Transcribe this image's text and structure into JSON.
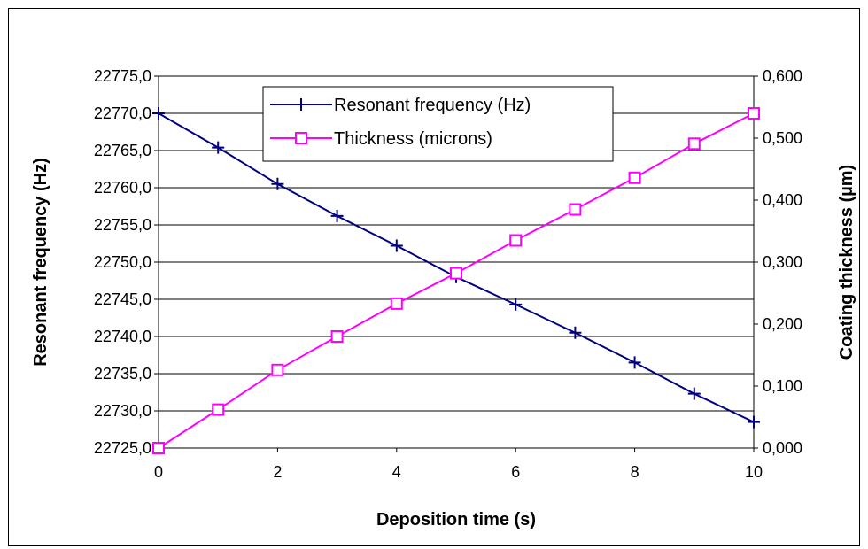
{
  "chart_data": {
    "type": "line",
    "xlabel": "Deposition time (s)",
    "ylabel_left": "Resonant frequency (Hz)",
    "ylabel_right": "Coating thickness (µm)",
    "x": [
      0,
      1,
      2,
      3,
      4,
      5,
      6,
      7,
      8,
      9,
      10
    ],
    "xlim": [
      0,
      10
    ],
    "xticks": [
      "0",
      "2",
      "4",
      "6",
      "8",
      "10"
    ],
    "xtick_values": [
      0,
      2,
      4,
      6,
      8,
      10
    ],
    "ylim_left": [
      22725,
      22775
    ],
    "yticks_left": [
      "22725,0",
      "22730,0",
      "22735,0",
      "22740,0",
      "22745,0",
      "22750,0",
      "22755,0",
      "22760,0",
      "22765,0",
      "22770,0",
      "22775,0"
    ],
    "ylim_right": [
      0,
      0.6
    ],
    "yticks_right": [
      "0,000",
      "0,100",
      "0,200",
      "0,300",
      "0,400",
      "0,500",
      "0,600"
    ],
    "grid": true,
    "legend_position": "top-center",
    "series": [
      {
        "name": "Resonant frequency (Hz)",
        "axis": "left",
        "color": "#000080",
        "marker": "plus",
        "values": [
          22770.0,
          22765.4,
          22760.5,
          22756.2,
          22752.2,
          22748.0,
          22744.3,
          22740.5,
          22736.5,
          22732.3,
          22728.5
        ]
      },
      {
        "name": "Thickness (microns)",
        "axis": "right",
        "color": "#ff00ff",
        "marker": "square",
        "values": [
          0.0,
          0.062,
          0.126,
          0.18,
          0.233,
          0.282,
          0.335,
          0.385,
          0.436,
          0.491,
          0.54
        ]
      }
    ]
  }
}
